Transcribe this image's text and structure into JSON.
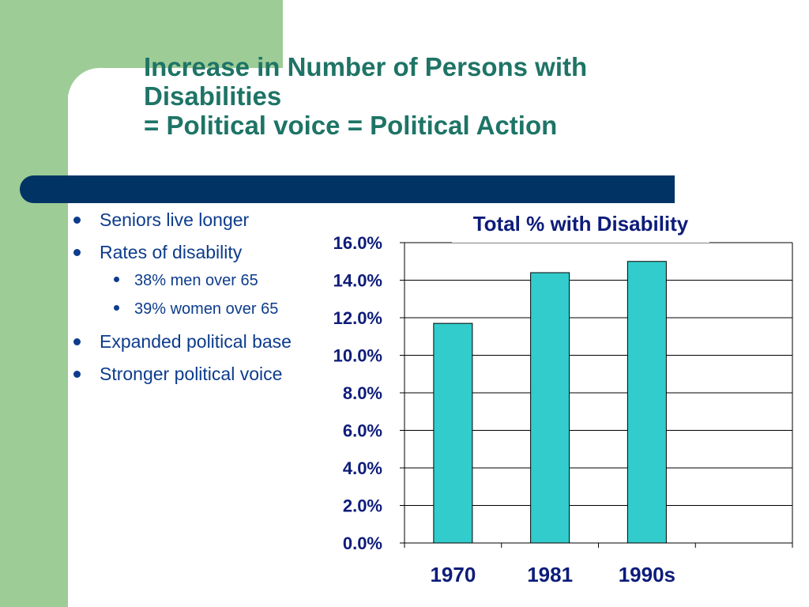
{
  "slide": {
    "title_lines": [
      "Increase in Number of Persons with",
      "Disabilities",
      "= Political voice = Political Action"
    ],
    "bullets": [
      {
        "text": "Seniors live longer",
        "level": 1
      },
      {
        "text": "Rates of disability",
        "level": 1
      },
      {
        "text": "38% men over 65",
        "level": 2
      },
      {
        "text": "39% women over 65",
        "level": 2
      },
      {
        "text": "Expanded political base",
        "level": 1
      },
      {
        "text": "Stronger political voice",
        "level": 1
      }
    ],
    "colors": {
      "title": "#1e7466",
      "accent_green": "#9dcc96",
      "rule_navy": "#013464",
      "bullet_text": "#0d3c8c",
      "bar_fill": "#33cccc",
      "chart_text": "#0d1c7a"
    }
  },
  "chart_data": {
    "type": "bar",
    "title": "Total % with Disability",
    "categories": [
      "1970",
      "1981",
      "1990s"
    ],
    "values": [
      11.7,
      14.4,
      15.0
    ],
    "ylim": [
      0,
      16
    ],
    "yticks": [
      "0.0%",
      "2.0%",
      "4.0%",
      "6.0%",
      "8.0%",
      "10.0%",
      "12.0%",
      "14.0%",
      "16.0%"
    ],
    "grid": true,
    "xlabel": "",
    "ylabel": ""
  }
}
